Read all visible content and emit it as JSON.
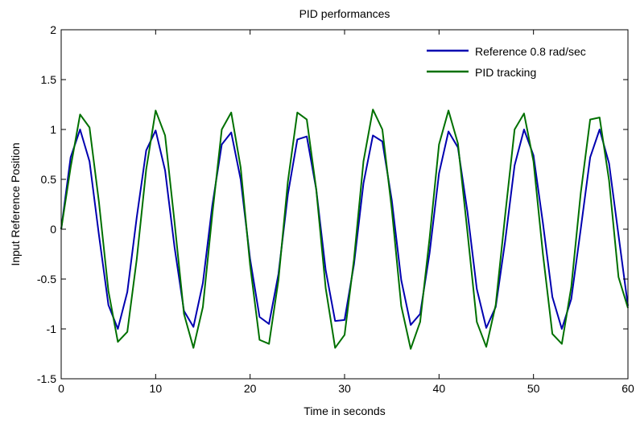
{
  "chart_data": {
    "type": "line",
    "title": "PID performances",
    "xlabel": "Time in seconds",
    "ylabel": "Input Reference Position",
    "xlim": [
      0,
      60
    ],
    "ylim": [
      -1.5,
      2
    ],
    "xticks": [
      0,
      10,
      20,
      30,
      40,
      50,
      60
    ],
    "yticks": [
      -1.5,
      -1,
      -0.5,
      0,
      0.5,
      1,
      1.5,
      2
    ],
    "xtick_labels": [
      "0",
      "10",
      "20",
      "30",
      "40",
      "50",
      "60"
    ],
    "ytick_labels": [
      "-1.5",
      "-1",
      "-0.5",
      "0",
      "0.5",
      "1",
      "1.5",
      "2"
    ],
    "grid": false,
    "legend_position": "top-right",
    "series": [
      {
        "name": "Reference 0.8 rad/sec",
        "color": "#0000b0",
        "x": [
          0,
          1,
          2,
          3,
          4,
          5,
          6,
          7,
          8,
          9,
          10,
          11,
          12,
          13,
          14,
          15,
          16,
          17,
          18,
          19,
          20,
          21,
          22,
          23,
          24,
          25,
          26,
          27,
          28,
          29,
          30,
          31,
          32,
          33,
          34,
          35,
          36,
          37,
          38,
          39,
          40,
          41,
          42,
          43,
          44,
          45,
          46,
          47,
          48,
          49,
          50,
          51,
          52,
          53,
          54,
          55,
          56,
          57,
          58,
          59,
          60
        ],
        "y": [
          0,
          0.72,
          1.0,
          0.68,
          -0.06,
          -0.76,
          -1.0,
          -0.63,
          0.12,
          0.79,
          0.99,
          0.59,
          -0.18,
          -0.82,
          -0.98,
          -0.54,
          0.24,
          0.85,
          0.97,
          0.5,
          -0.3,
          -0.88,
          -0.95,
          -0.45,
          0.35,
          0.9,
          0.93,
          0.4,
          -0.41,
          -0.92,
          -0.91,
          -0.35,
          0.46,
          0.94,
          0.88,
          0.29,
          -0.51,
          -0.96,
          -0.85,
          -0.24,
          0.56,
          0.98,
          0.82,
          0.18,
          -0.6,
          -0.99,
          -0.78,
          -0.12,
          0.64,
          1.0,
          0.74,
          0.06,
          -0.68,
          -1.0,
          -0.7,
          0.0,
          0.72,
          1.0,
          0.66,
          -0.06,
          -0.77
        ]
      },
      {
        "name": "PID tracking",
        "color": "#007000",
        "x": [
          0,
          1,
          2,
          3,
          4,
          5,
          6,
          7,
          8,
          9,
          10,
          11,
          12,
          13,
          14,
          15,
          16,
          17,
          18,
          19,
          20,
          21,
          22,
          23,
          24,
          25,
          26,
          27,
          28,
          29,
          30,
          31,
          32,
          33,
          34,
          35,
          36,
          37,
          38,
          39,
          40,
          41,
          42,
          43,
          44,
          45,
          46,
          47,
          48,
          49,
          50,
          51,
          52,
          53,
          54,
          55,
          56,
          57,
          58,
          59,
          60
        ],
        "y": [
          0,
          0.62,
          1.15,
          1.02,
          0.27,
          -0.62,
          -1.13,
          -1.03,
          -0.3,
          0.6,
          1.19,
          0.94,
          0.07,
          -0.85,
          -1.19,
          -0.78,
          0.15,
          1.0,
          1.17,
          0.62,
          -0.36,
          -1.11,
          -1.15,
          -0.51,
          0.48,
          1.17,
          1.1,
          0.4,
          -0.59,
          -1.19,
          -1.06,
          -0.3,
          0.68,
          1.2,
          1.0,
          0.2,
          -0.77,
          -1.2,
          -0.93,
          -0.09,
          0.85,
          1.19,
          0.86,
          -0.02,
          -0.93,
          -1.18,
          -0.76,
          0.14,
          1.0,
          1.16,
          0.68,
          -0.25,
          -1.05,
          -1.15,
          -0.58,
          0.36,
          1.1,
          1.12,
          0.49,
          -0.48,
          -0.79
        ]
      }
    ]
  }
}
